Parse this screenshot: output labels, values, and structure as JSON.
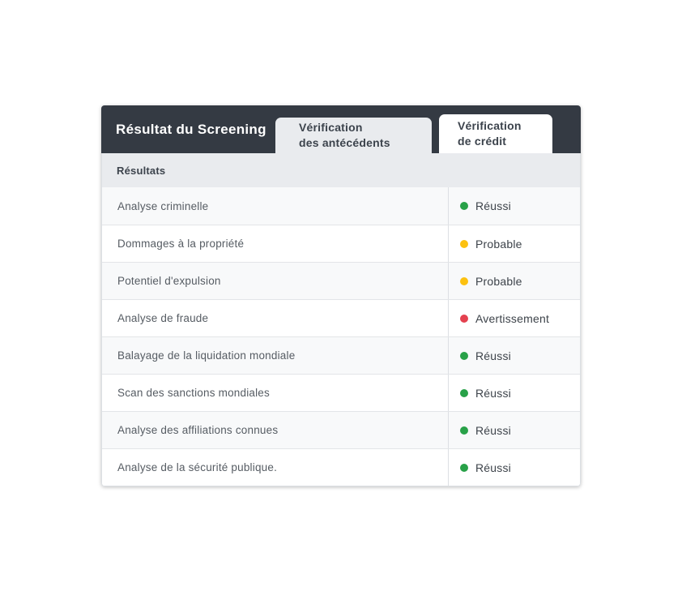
{
  "colors": {
    "header_bg": "#343a43",
    "tab_inactive_bg": "#e9ebee",
    "tab_active_bg": "#ffffff",
    "band_bg": "#e9ebee",
    "status_green": "#28a148",
    "status_yellow": "#fcc110",
    "status_red": "#e4414f"
  },
  "card": {
    "title": "Résultat du Screening",
    "tabs": [
      {
        "label": "Vérification\ndes antécédents"
      },
      {
        "label": "Vérification\nde crédit"
      }
    ],
    "section_header": "Résultats",
    "results": [
      {
        "name": "Analyse criminelle",
        "status": "Réussi",
        "status_color": "#28a148"
      },
      {
        "name": "Dommages à la propriété",
        "status": "Probable",
        "status_color": "#fcc110"
      },
      {
        "name": "Potentiel d'expulsion",
        "status": "Probable",
        "status_color": "#fcc110"
      },
      {
        "name": "Analyse de fraude",
        "status": "Avertissement",
        "status_color": "#e4414f"
      },
      {
        "name": "Balayage de la liquidation mondiale",
        "status": "Réussi",
        "status_color": "#28a148"
      },
      {
        "name": "Scan des sanctions mondiales",
        "status": "Réussi",
        "status_color": "#28a148"
      },
      {
        "name": "Analyse des affiliations connues",
        "status": "Réussi",
        "status_color": "#28a148"
      },
      {
        "name": "Analyse de la sécurité publique.",
        "status": "Réussi",
        "status_color": "#28a148"
      }
    ]
  }
}
